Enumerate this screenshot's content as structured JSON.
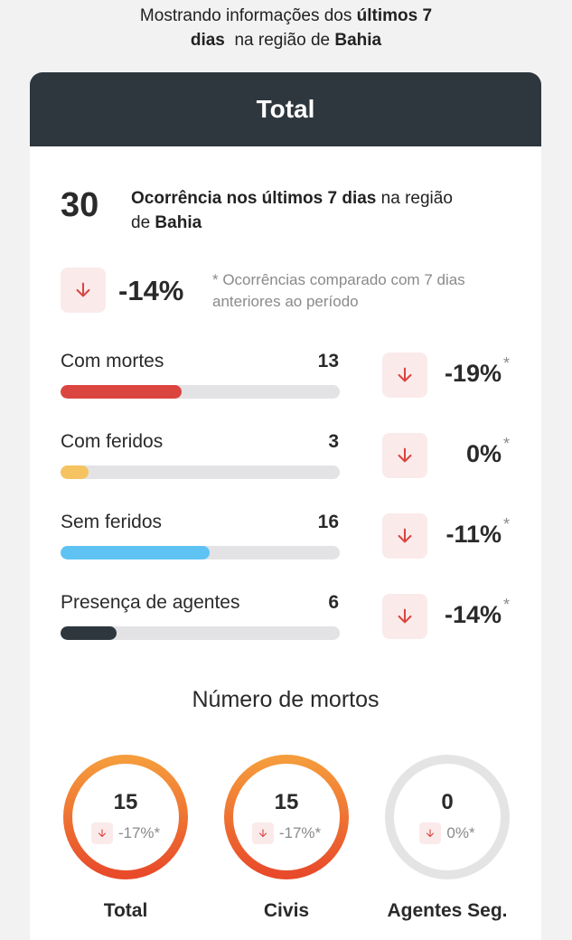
{
  "intro": {
    "prefix": "Mostrando informações dos ",
    "period_bold": "últimos 7",
    "period_bold2": "dias",
    "mid": "  na região de ",
    "region": "Bahia"
  },
  "card": {
    "title": "Total"
  },
  "summary": {
    "count": "30",
    "text_bold": "Ocorrência nos últimos 7 dias",
    "text_mid": " na região",
    "text_de": "de ",
    "region": "Bahia"
  },
  "comparison": {
    "percent": "-14%",
    "note": "* Ocorrências comparado com 7 dias anteriores ao período"
  },
  "categories": [
    {
      "label": "Com mortes",
      "count": "13",
      "fraction": 0.4333,
      "color": "#db4540",
      "change": "-19%",
      "star": "*"
    },
    {
      "label": "Com feridos",
      "count": "3",
      "fraction": 0.1,
      "color": "#f5c35f",
      "change": "0%",
      "star": "*"
    },
    {
      "label": "Sem feridos",
      "count": "16",
      "fraction": 0.5333,
      "color": "#5ec3f2",
      "change": "-11%",
      "star": "*"
    },
    {
      "label": "Presença de agentes",
      "count": "6",
      "fraction": 0.2,
      "color": "#2e373d",
      "change": "-14%",
      "star": "*"
    }
  ],
  "deaths": {
    "title": "Número de mortos",
    "items": [
      {
        "label": "Total",
        "value": "15",
        "change": "-17%*",
        "ring": "orange"
      },
      {
        "label": "Civis",
        "value": "15",
        "change": "-17%*",
        "ring": "orange"
      },
      {
        "label": "Agentes Seg.",
        "value": "0",
        "change": "0%*",
        "ring": "gray"
      }
    ]
  },
  "icons": {
    "down_arrow": "arrow-down-icon"
  },
  "colors": {
    "header": "#2e373d",
    "accent_red": "#d9443f",
    "arrow_bg": "#fbeaea",
    "ring_orange": "#ee6a2f",
    "ring_gray": "#e4e4e4"
  }
}
